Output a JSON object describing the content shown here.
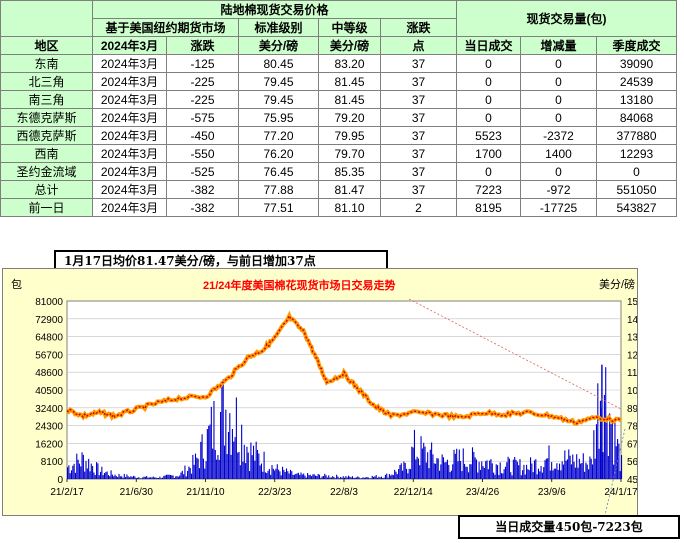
{
  "table": {
    "title": "陆地棉现货交易价格",
    "volume_title": "现货交易量(包)",
    "header_row1": [
      "",
      "基于美国纽约期货市场",
      "标准级别",
      "中等级",
      "涨跌"
    ],
    "header_row2": [
      "地区",
      "2024年3月",
      "涨跌",
      "美分/磅",
      "美分/磅",
      "点",
      "当日成交",
      "增减量",
      "季度成交"
    ],
    "rows": [
      {
        "region": "东南",
        "month": "2024年3月",
        "change": "-125",
        "std": "80.45",
        "mid": "83.20",
        "pts": "37",
        "today": "0",
        "delta": "0",
        "season": "39090"
      },
      {
        "region": "北三角",
        "month": "2024年3月",
        "change": "-225",
        "std": "79.45",
        "mid": "81.45",
        "pts": "37",
        "today": "0",
        "delta": "0",
        "season": "24539"
      },
      {
        "region": "南三角",
        "month": "2024年3月",
        "change": "-225",
        "std": "79.45",
        "mid": "81.45",
        "pts": "37",
        "today": "0",
        "delta": "0",
        "season": "13180"
      },
      {
        "region": "东德克萨斯",
        "month": "2024年3月",
        "change": "-575",
        "std": "75.95",
        "mid": "79.20",
        "pts": "37",
        "today": "0",
        "delta": "0",
        "season": "84068"
      },
      {
        "region": "西德克萨斯",
        "month": "2024年3月",
        "change": "-450",
        "std": "77.20",
        "mid": "79.95",
        "pts": "37",
        "today": "5523",
        "delta": "-2372",
        "season": "377880"
      },
      {
        "region": "西南",
        "month": "2024年3月",
        "change": "-550",
        "std": "76.20",
        "mid": "79.70",
        "pts": "37",
        "today": "1700",
        "delta": "1400",
        "season": "12293"
      },
      {
        "region": "圣约金流域",
        "month": "2024年3月",
        "change": "-525",
        "std": "76.45",
        "mid": "85.35",
        "pts": "37",
        "today": "0",
        "delta": "0",
        "season": "0"
      },
      {
        "region": "总计",
        "month": "2024年3月",
        "change": "-382",
        "std": "77.88",
        "mid": "81.47",
        "pts": "37",
        "today": "7223",
        "delta": "-972",
        "season": "551050"
      },
      {
        "region": "前一日",
        "month": "2024年3月",
        "change": "-382",
        "std": "77.51",
        "mid": "81.10",
        "pts": "2",
        "today": "8195",
        "delta": "-17725",
        "season": "543827"
      }
    ]
  },
  "caption": "1月17日均价81.47美分/磅，与前日增加37点",
  "footnote": "当日成交量450包-7223包",
  "chart_data": {
    "type": "bar+line",
    "title": "21/24年度美国棉花现货市场日交易走势",
    "ylabel_left": "包",
    "ylabel_right": "美分/磅",
    "left_ticks": [
      0,
      8100,
      16200,
      24300,
      32400,
      40500,
      48600,
      56700,
      64800,
      72900,
      81000
    ],
    "right_ticks": [
      45,
      56,
      67,
      78,
      89,
      100,
      111,
      122,
      133,
      144,
      155
    ],
    "x_ticks": [
      "21/2/17",
      "21/6/30",
      "21/11/10",
      "22/3/23",
      "22/8/3",
      "22/12/14",
      "23/4/26",
      "23/9/6",
      "24/1/17"
    ],
    "price_series": {
      "name": "",
      "x": [
        "21/2/17",
        "21/3/20",
        "21/4/20",
        "21/5/20",
        "21/6/30",
        "21/8/10",
        "21/9/20",
        "21/11/10",
        "21/12/20",
        "22/1/30",
        "22/3/1",
        "22/3/23",
        "22/4/20",
        "22/5/20",
        "22/6/10",
        "22/7/1",
        "22/8/3",
        "22/9/1",
        "22/10/1",
        "22/11/1",
        "22/12/14",
        "23/1/30",
        "23/3/15",
        "23/4/26",
        "23/6/10",
        "23/7/20",
        "23/9/6",
        "23/10/20",
        "23/12/1",
        "24/1/17"
      ],
      "y": [
        88,
        84,
        86,
        84,
        88,
        92,
        95,
        96,
        106,
        120,
        125,
        132,
        145,
        135,
        120,
        105,
        110,
        100,
        90,
        84,
        86,
        85,
        83,
        86,
        85,
        86,
        84,
        80,
        83,
        81
      ]
    },
    "volume_series": {
      "name": "",
      "x": [
        "21/2/17",
        "21/3/20",
        "21/4/20",
        "21/5/20",
        "21/6/30",
        "21/8/10",
        "21/9/20",
        "21/10/20",
        "21/11/10",
        "21/12/1",
        "21/12/20",
        "22/1/10",
        "22/2/1",
        "22/3/1",
        "22/3/23",
        "22/5/1",
        "22/7/1",
        "22/9/1",
        "22/10/20",
        "22/12/1",
        "22/12/14",
        "23/1/10",
        "23/2/10",
        "23/3/15",
        "23/4/26",
        "23/6/1",
        "23/7/20",
        "23/9/6",
        "23/10/20",
        "23/11/20",
        "23/12/10",
        "24/1/1",
        "24/1/17"
      ],
      "y": [
        6000,
        10000,
        4000,
        2000,
        1000,
        800,
        2000,
        8000,
        18000,
        30000,
        36000,
        28000,
        14000,
        9000,
        5000,
        2000,
        1500,
        800,
        1500,
        6000,
        15000,
        12000,
        8000,
        10000,
        9000,
        7000,
        6000,
        11000,
        9000,
        8000,
        52000,
        25000,
        7223
      ]
    },
    "volume_peak": {
      "x": "23/12/10",
      "y": 52000
    }
  }
}
